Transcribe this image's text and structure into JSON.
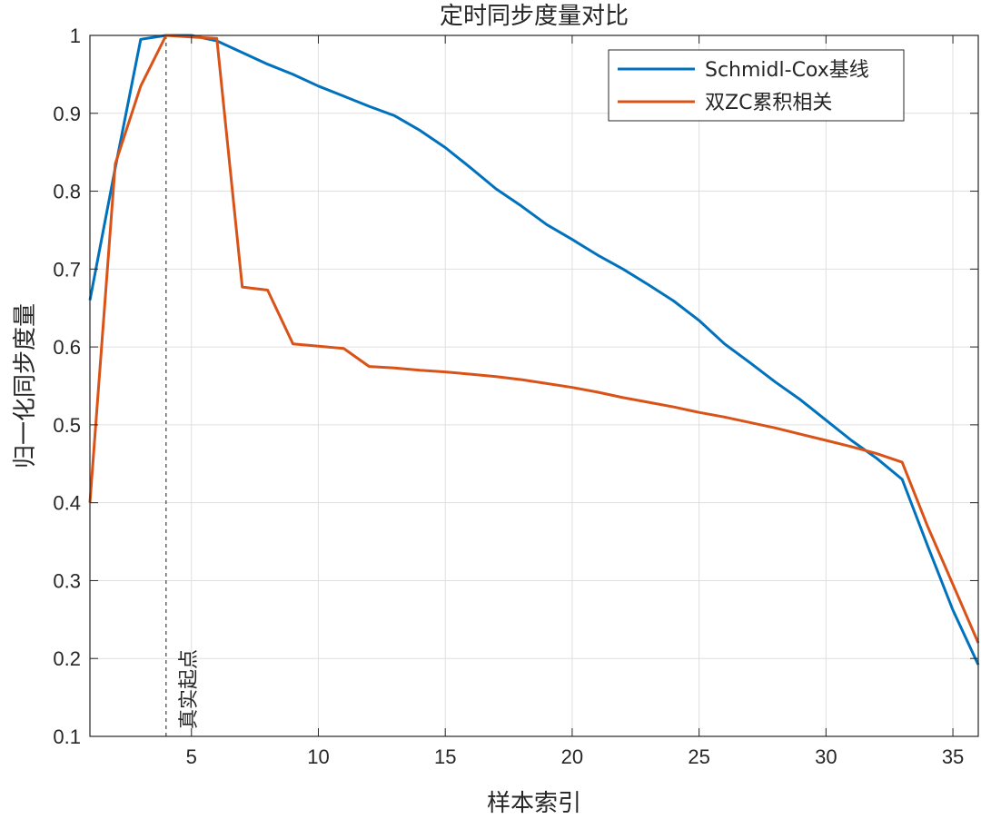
{
  "chart_data": {
    "type": "line",
    "title": "定时同步度量对比",
    "xlabel": "样本索引",
    "ylabel": "归一化同步度量",
    "xlim": [
      1,
      36
    ],
    "ylim": [
      0.1,
      1
    ],
    "xticks": [
      5,
      10,
      15,
      20,
      25,
      30,
      35
    ],
    "yticks": [
      0.1,
      0.2,
      0.3,
      0.4,
      0.5,
      0.6,
      0.7,
      0.8,
      0.9,
      1
    ],
    "ytick_labels": [
      "0.1",
      "0.2",
      "0.3",
      "0.4",
      "0.5",
      "0.6",
      "0.7",
      "0.8",
      "0.9",
      "1"
    ],
    "grid": true,
    "legend_position": "top-right",
    "series": [
      {
        "name": "Schmidl-Cox基线",
        "color": "#0072BD",
        "x": [
          1,
          2,
          3,
          4,
          5,
          6,
          7,
          8,
          9,
          10,
          11,
          12,
          13,
          14,
          15,
          16,
          17,
          18,
          19,
          20,
          21,
          22,
          23,
          24,
          25,
          26,
          27,
          28,
          29,
          30,
          31,
          32,
          33,
          34,
          35,
          36
        ],
        "y": [
          0.66,
          0.83,
          0.995,
          1.0,
          1.0,
          0.993,
          0.978,
          0.963,
          0.95,
          0.935,
          0.922,
          0.909,
          0.897,
          0.878,
          0.856,
          0.83,
          0.803,
          0.781,
          0.757,
          0.738,
          0.718,
          0.7,
          0.68,
          0.659,
          0.634,
          0.604,
          0.58,
          0.555,
          0.532,
          0.506,
          0.48,
          0.457,
          0.43,
          0.345,
          0.262,
          0.192
        ]
      },
      {
        "name": "双ZC累积相关",
        "color": "#D95319",
        "x": [
          1,
          2,
          3,
          4,
          5,
          6,
          7,
          8,
          9,
          10,
          11,
          12,
          13,
          14,
          15,
          16,
          17,
          18,
          19,
          20,
          21,
          22,
          23,
          24,
          25,
          26,
          27,
          28,
          29,
          30,
          31,
          32,
          33,
          34,
          35,
          36
        ],
        "y": [
          0.4,
          0.835,
          0.935,
          1.0,
          0.998,
          0.996,
          0.677,
          0.673,
          0.604,
          0.601,
          0.598,
          0.575,
          0.573,
          0.57,
          0.568,
          0.565,
          0.562,
          0.558,
          0.553,
          0.548,
          0.542,
          0.535,
          0.529,
          0.523,
          0.516,
          0.51,
          0.503,
          0.496,
          0.488,
          0.48,
          0.472,
          0.463,
          0.452,
          0.37,
          0.295,
          0.22
        ]
      }
    ],
    "annotations": [
      {
        "type": "vline",
        "x": 4,
        "style": "dashed",
        "label": "真实起点"
      }
    ]
  }
}
